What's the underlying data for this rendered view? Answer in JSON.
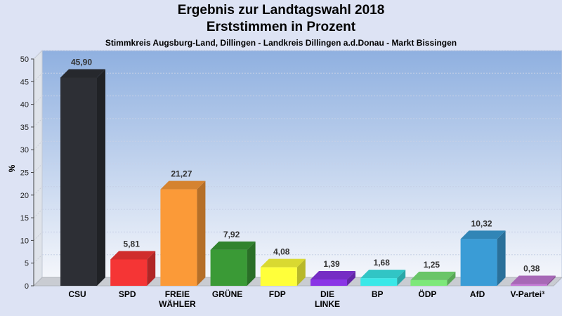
{
  "chart_data": {
    "type": "bar",
    "title": "Ergebnis zur Landtagswahl 2018",
    "subtitle": "Erststimmen in Prozent",
    "caption": "Stimmkreis Augsburg-Land, Dillingen - Landkreis Dillingen a.d.Donau - Markt Bissingen",
    "ylabel": "%",
    "xlabel": "",
    "ylim": [
      0,
      50
    ],
    "yticks": [
      0,
      5,
      10,
      15,
      20,
      25,
      30,
      35,
      40,
      45,
      50
    ],
    "grid": true,
    "categories": [
      [
        "CSU"
      ],
      [
        "SPD"
      ],
      [
        "FREIE",
        "WÄHLER"
      ],
      [
        "GRÜNE"
      ],
      [
        "FDP"
      ],
      [
        "DIE",
        "LINKE"
      ],
      [
        "BP"
      ],
      [
        "ÖDP"
      ],
      [
        "AfD"
      ],
      [
        "V-Partei³"
      ]
    ],
    "values": [
      45.9,
      5.81,
      21.27,
      7.92,
      4.08,
      1.39,
      1.68,
      1.25,
      10.32,
      0.38
    ],
    "value_labels": [
      "45,90",
      "5,81",
      "21,27",
      "7,92",
      "4,08",
      "1,39",
      "1,68",
      "1,25",
      "10,32",
      "0,38"
    ],
    "colors": [
      "#2d2f35",
      "#f53535",
      "#fb9a38",
      "#3a9a36",
      "#ffff3a",
      "#8a35e6",
      "#3ae8e8",
      "#7de87a",
      "#3a9cd6",
      "#c57ad6"
    ]
  }
}
